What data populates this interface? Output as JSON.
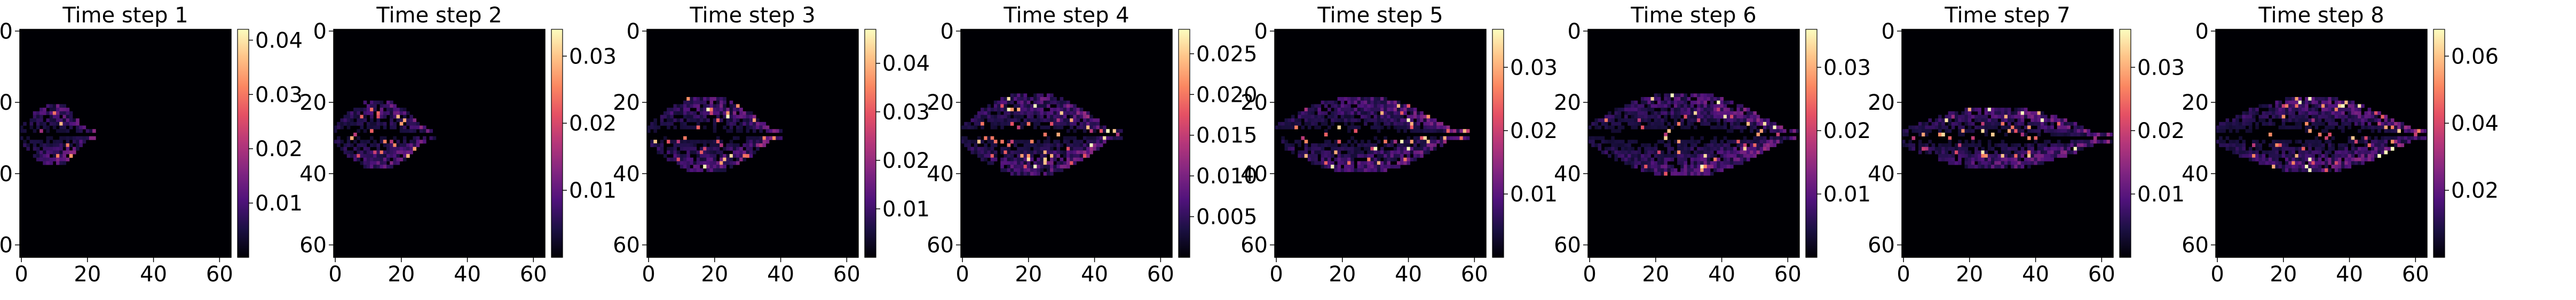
{
  "chart_data": [
    {
      "type": "heatmap",
      "title": "Time step 1",
      "x_ticks": [
        0,
        20,
        40,
        60
      ],
      "y_ticks": [
        0,
        20,
        40,
        60
      ],
      "grid_size": 64,
      "colorbar_ticks": [
        "0.01",
        "0.02",
        "0.03",
        "0.04"
      ],
      "colorbar_range": [
        0,
        0.042
      ],
      "plume": {
        "front_x": 22,
        "center_y": 29,
        "max_half_width": 9,
        "tail_x": 0
      }
    },
    {
      "type": "heatmap",
      "title": "Time step 2",
      "x_ticks": [
        0,
        20,
        40,
        60
      ],
      "y_ticks": [
        0,
        20,
        40,
        60
      ],
      "grid_size": 64,
      "colorbar_ticks": [
        "0.01",
        "0.02",
        "0.03"
      ],
      "colorbar_range": [
        0,
        0.034
      ],
      "plume": {
        "front_x": 30,
        "center_y": 29,
        "max_half_width": 10,
        "tail_x": 0
      }
    },
    {
      "type": "heatmap",
      "title": "Time step 3",
      "x_ticks": [
        0,
        20,
        40,
        60
      ],
      "y_ticks": [
        0,
        20,
        40,
        60
      ],
      "grid_size": 64,
      "colorbar_ticks": [
        "0.01",
        "0.02",
        "0.03",
        "0.04"
      ],
      "colorbar_range": [
        0,
        0.047
      ],
      "plume": {
        "front_x": 40,
        "center_y": 29,
        "max_half_width": 11,
        "tail_x": 0
      }
    },
    {
      "type": "heatmap",
      "title": "Time step 4",
      "x_ticks": [
        0,
        20,
        40,
        60
      ],
      "y_ticks": [
        0,
        20,
        40,
        60
      ],
      "grid_size": 64,
      "colorbar_ticks": [
        "0.005",
        "0.010",
        "0.015",
        "0.020",
        "0.025"
      ],
      "colorbar_range": [
        0,
        0.028
      ],
      "plume": {
        "front_x": 48,
        "center_y": 29,
        "max_half_width": 12,
        "tail_x": 0
      }
    },
    {
      "type": "heatmap",
      "title": "Time step 5",
      "x_ticks": [
        0,
        20,
        40,
        60
      ],
      "y_ticks": [
        0,
        20,
        40,
        60
      ],
      "grid_size": 64,
      "colorbar_ticks": [
        "0.01",
        "0.02",
        "0.03"
      ],
      "colorbar_range": [
        0,
        0.036
      ],
      "plume": {
        "front_x": 58,
        "center_y": 29,
        "max_half_width": 11,
        "tail_x": 0
      }
    },
    {
      "type": "heatmap",
      "title": "Time step 6",
      "x_ticks": [
        0,
        20,
        40,
        60
      ],
      "y_ticks": [
        0,
        20,
        40,
        60
      ],
      "grid_size": 64,
      "colorbar_ticks": [
        "0.01",
        "0.02",
        "0.03"
      ],
      "colorbar_range": [
        0,
        0.036
      ],
      "plume": {
        "front_x": 64,
        "center_y": 29,
        "max_half_width": 12,
        "tail_x": 0
      }
    },
    {
      "type": "heatmap",
      "title": "Time step 7",
      "x_ticks": [
        0,
        20,
        40,
        60
      ],
      "y_ticks": [
        0,
        20,
        40,
        60
      ],
      "grid_size": 64,
      "colorbar_ticks": [
        "0.01",
        "0.02",
        "0.03"
      ],
      "colorbar_range": [
        0,
        0.036
      ],
      "plume": {
        "front_x": 64,
        "center_y": 30,
        "max_half_width": 9,
        "tail_x": 0
      }
    },
    {
      "type": "heatmap",
      "title": "Time step 8",
      "x_ticks": [
        0,
        20,
        40,
        60
      ],
      "y_ticks": [
        0,
        20,
        40,
        60
      ],
      "grid_size": 64,
      "colorbar_ticks": [
        "0.02",
        "0.04",
        "0.06"
      ],
      "colorbar_range": [
        0,
        0.068
      ],
      "plume": {
        "front_x": 64,
        "center_y": 29,
        "max_half_width": 11,
        "tail_x": 0
      }
    }
  ],
  "colors": {
    "colormap": [
      "#000004",
      "#1c1044",
      "#4f127b",
      "#812581",
      "#b5367a",
      "#e55064",
      "#fb8761",
      "#fec287",
      "#fcfdbf"
    ],
    "axis": "#000000",
    "background": "#ffffff"
  }
}
